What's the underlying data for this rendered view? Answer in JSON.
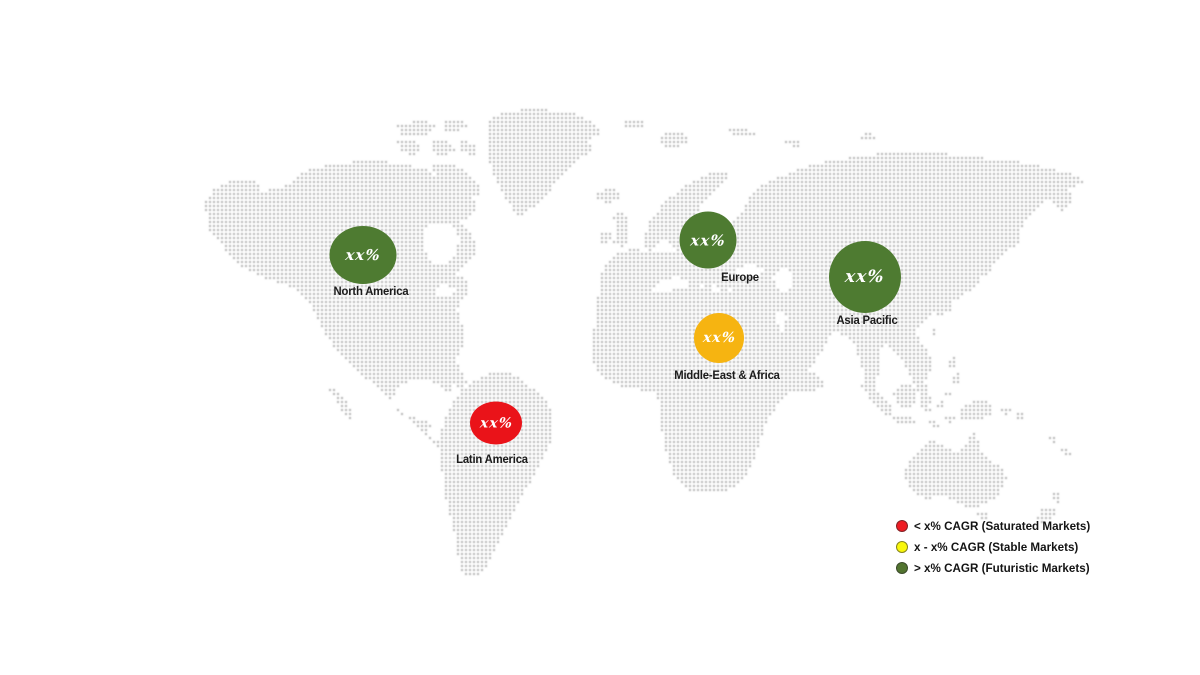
{
  "map": {
    "dot_color": "#c9c9c9",
    "background_color": "#ffffff"
  },
  "regions": [
    {
      "id": "north-america",
      "label": "North America",
      "value": "xx%",
      "color": "#4e7b31",
      "category": "futuristic"
    },
    {
      "id": "latin-america",
      "label": "Latin America",
      "value": "xx%",
      "color": "#ea1319",
      "category": "saturated"
    },
    {
      "id": "europe",
      "label": "Europe",
      "value": "xx%",
      "color": "#4e7b31",
      "category": "futuristic"
    },
    {
      "id": "middle-east-africa",
      "label": "Middle-East & Africa",
      "value": "xx%",
      "color": "#f6b411",
      "category": "stable"
    },
    {
      "id": "asia-pacific",
      "label": "Asia Pacific",
      "value": "xx%",
      "color": "#4e7b31",
      "category": "futuristic"
    }
  ],
  "legend": {
    "items": [
      {
        "swatch_color": "#ee1c23",
        "label": "< x% CAGR (Saturated Markets)"
      },
      {
        "swatch_color": "#f9f70b",
        "label": "x - x% CAGR (Stable Markets)"
      },
      {
        "swatch_color": "#52742f",
        "label": "> x% CAGR (Futuristic Markets)"
      }
    ]
  }
}
